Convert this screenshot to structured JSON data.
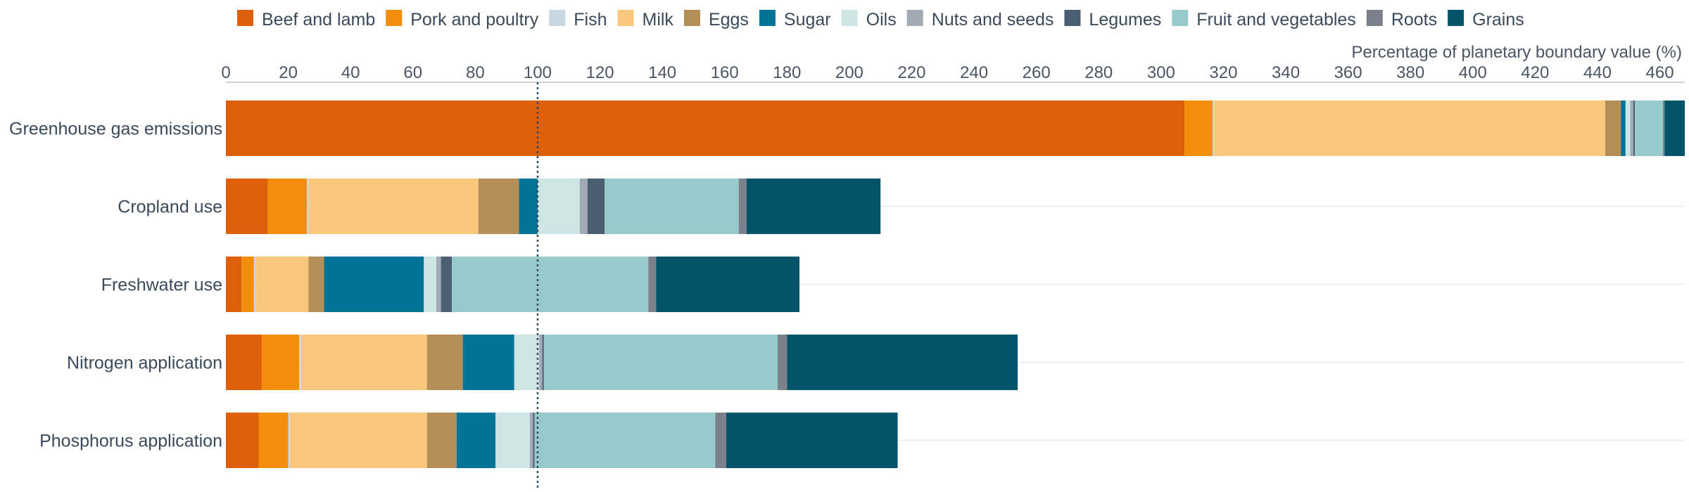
{
  "chart_data": {
    "type": "bar",
    "orientation": "horizontal",
    "stacked": true,
    "axis_title": "Percentage of planetary boundary value (%)",
    "xlim": [
      0,
      468
    ],
    "xticks": [
      0,
      20,
      40,
      60,
      80,
      100,
      120,
      140,
      160,
      180,
      200,
      220,
      240,
      260,
      280,
      300,
      320,
      340,
      360,
      380,
      400,
      420,
      440,
      460
    ],
    "reference_line": 100,
    "legend_position": "top",
    "grid": "horizontal lines",
    "categories": [
      "Greenhouse gas emissions",
      "Cropland use",
      "Freshwater use",
      "Nitrogen application",
      "Phosphorus application"
    ],
    "series": [
      {
        "name": "Beef and lamb",
        "color": "#dd5f0a",
        "values": [
          307.5,
          13.5,
          5,
          11.5,
          10.5
        ]
      },
      {
        "name": "Pork and poultry",
        "color": "#f28e0c",
        "values": [
          9,
          12.5,
          4,
          12,
          9.5
        ]
      },
      {
        "name": "Fish",
        "color": "#c9d7e3",
        "values": [
          0.5,
          0.5,
          0.5,
          0.5,
          0.5
        ]
      },
      {
        "name": "Milk",
        "color": "#fac87d",
        "values": [
          125.5,
          54.5,
          17,
          40.5,
          44
        ]
      },
      {
        "name": "Eggs",
        "color": "#b48e57",
        "values": [
          5,
          13,
          5,
          11.5,
          9.5
        ]
      },
      {
        "name": "Sugar",
        "color": "#007396",
        "values": [
          1.5,
          6,
          32,
          16.5,
          12.5
        ]
      },
      {
        "name": "Oils",
        "color": "#cde5e5",
        "values": [
          1.5,
          13.5,
          4,
          8,
          11
        ]
      },
      {
        "name": "Nuts and seeds",
        "color": "#a2aab6",
        "values": [
          1,
          2.5,
          1.5,
          1,
          1
        ]
      },
      {
        "name": "Legumes",
        "color": "#4b5f73",
        "values": [
          0.5,
          5.5,
          3.5,
          0.5,
          0.5
        ]
      },
      {
        "name": "Fruit and vegetables",
        "color": "#96cacb",
        "values": [
          9,
          43,
          63,
          75,
          58
        ]
      },
      {
        "name": "Roots",
        "color": "#7b818b",
        "values": [
          0.5,
          2.5,
          2.5,
          3,
          3.5
        ]
      },
      {
        "name": "Grains",
        "color": "#02546b",
        "values": [
          6.5,
          43,
          46,
          74,
          55
        ]
      }
    ]
  }
}
